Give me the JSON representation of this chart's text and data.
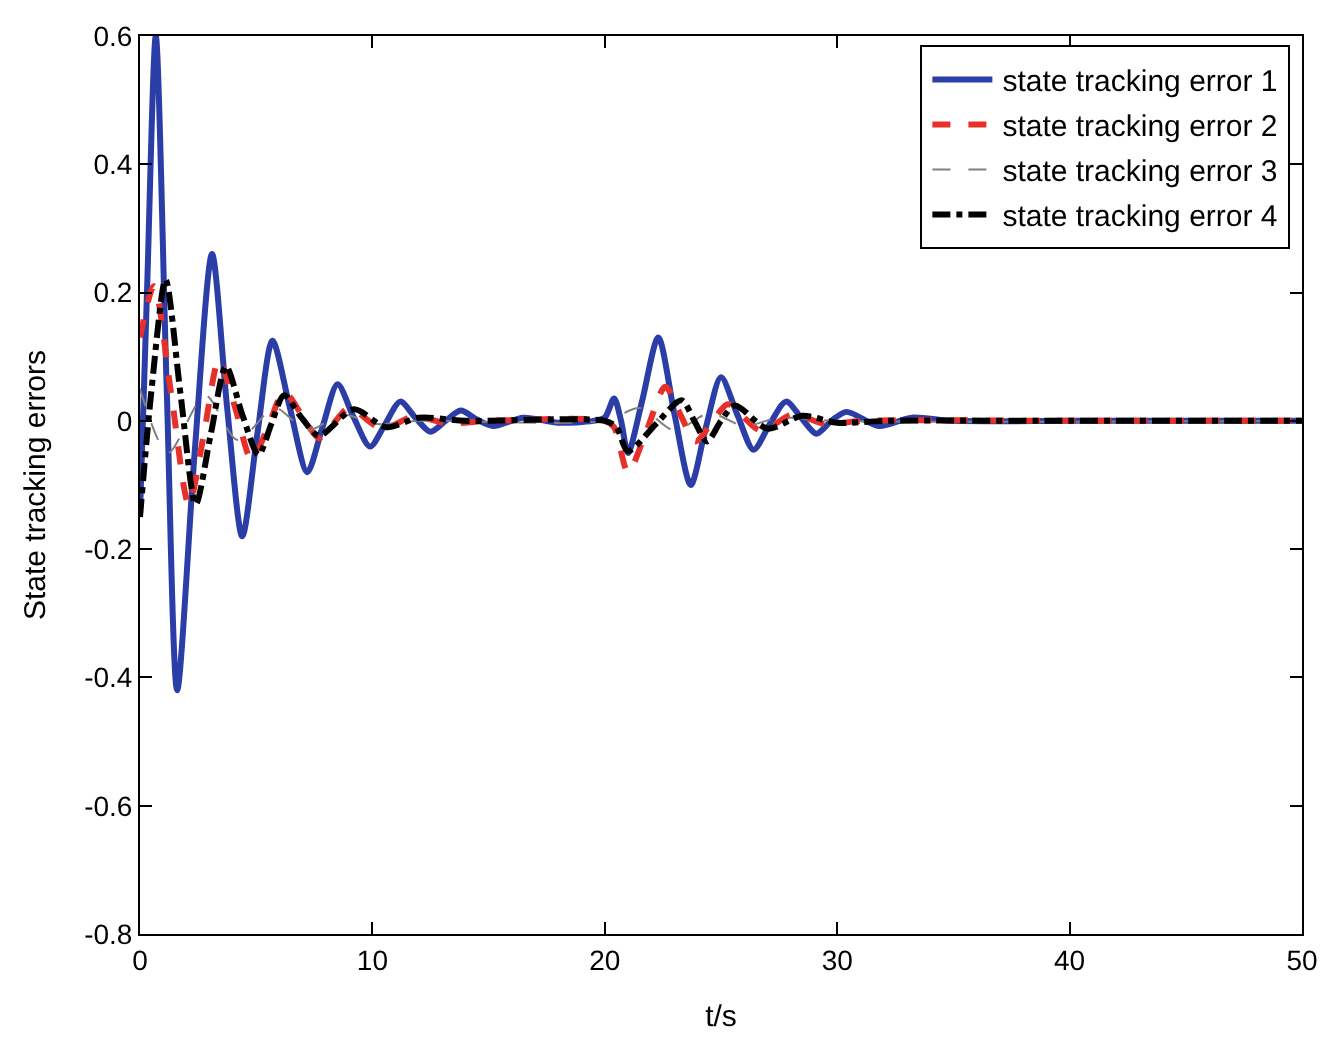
{
  "chart_data": {
    "type": "line",
    "xlabel": "t/s",
    "ylabel": "State tracking errors",
    "xlim": [
      0,
      50
    ],
    "xticks": [
      0,
      10,
      20,
      30,
      40,
      50
    ],
    "ylim": [
      -0.8,
      0.6
    ],
    "yticks": [
      -0.8,
      -0.6,
      -0.4,
      -0.2,
      0,
      0.2,
      0.4,
      0.6
    ],
    "legend": "top right",
    "series": [
      {
        "name": "state tracking error 1",
        "color": "#2b3ea8",
        "line_style": "solid",
        "x": [
          0,
          0.3,
          0.68,
          1.15,
          1.6,
          2.35,
          3.1,
          3.75,
          4.4,
          5.05,
          5.7,
          6.45,
          7.2,
          7.85,
          8.5,
          9.2,
          9.9,
          10.55,
          11.2,
          11.85,
          12.5,
          13.15,
          13.8,
          14.5,
          15.2,
          16.5,
          18,
          19.5,
          20,
          20.4,
          20.7,
          21.0,
          21.6,
          22.3,
          23.0,
          23.7,
          24.35,
          25.0,
          25.7,
          26.4,
          27.1,
          27.8,
          28.45,
          29.1,
          29.75,
          30.4,
          31.8,
          33.2,
          35,
          40,
          45,
          50
        ],
        "values": [
          -0.145,
          0.2,
          0.6,
          0.05,
          -0.42,
          -0.05,
          0.26,
          0.02,
          -0.18,
          -0.02,
          0.125,
          0.02,
          -0.08,
          -0.01,
          0.057,
          0.005,
          -0.04,
          -0.005,
          0.03,
          0.005,
          -0.017,
          0,
          0.016,
          0.002,
          -0.008,
          0.005,
          -0.003,
          0,
          0.005,
          0.035,
          0,
          -0.05,
          0.03,
          0.13,
          0.01,
          -0.1,
          -0.01,
          0.068,
          0.01,
          -0.045,
          -0.005,
          0.03,
          0.005,
          -0.02,
          0,
          0.014,
          -0.008,
          0.005,
          0,
          0,
          0,
          0
        ]
      },
      {
        "name": "state tracking error 2",
        "color": "#e8302a",
        "line_style": "dashed",
        "x": [
          0,
          0.6,
          1.35,
          2.1,
          2.75,
          3.4,
          4.1,
          4.8,
          5.5,
          6.2,
          6.95,
          7.7,
          8.35,
          9.0,
          10.4,
          11.8,
          13.2,
          15,
          20,
          20.4,
          21.0,
          21.8,
          22.6,
          23.25,
          23.9,
          24.6,
          25.3,
          26.7,
          28.1,
          29.5,
          31,
          40,
          50
        ],
        "values": [
          0.13,
          0.21,
          0.04,
          -0.13,
          -0.02,
          0.095,
          0.02,
          -0.06,
          -0.01,
          0.045,
          0.01,
          -0.027,
          -0.003,
          0.02,
          -0.012,
          0.007,
          -0.004,
          0,
          0,
          -0.01,
          -0.08,
          -0.015,
          0.053,
          0.01,
          -0.032,
          -0.003,
          0.026,
          -0.015,
          0.01,
          -0.005,
          0,
          0,
          0
        ]
      },
      {
        "name": "state tracking error 3",
        "color": "#808080",
        "line_style": "dashed",
        "x": [
          0,
          1.2,
          2.8,
          4.2,
          5.8,
          7.2,
          8.7,
          10.2,
          12,
          20,
          21.5,
          23,
          24.5,
          26,
          27.5,
          30,
          50
        ],
        "values": [
          0.05,
          -0.05,
          0.04,
          -0.03,
          0.02,
          -0.015,
          0.01,
          -0.005,
          0,
          0,
          0.02,
          -0.015,
          0.012,
          -0.008,
          0.005,
          0,
          0
        ]
      },
      {
        "name": "state tracking error 4",
        "color": "#000000",
        "line_style": "dashed",
        "x": [
          0,
          0.5,
          1.1,
          1.75,
          2.4,
          3.05,
          3.7,
          4.4,
          5.1,
          5.65,
          6.2,
          6.95,
          7.7,
          9.2,
          10.6,
          12,
          14,
          20,
          20.5,
          21,
          22.2,
          23.3,
          23.85,
          24.4,
          25.0,
          25.6,
          27,
          28.5,
          30,
          32,
          40,
          50
        ],
        "values": [
          -0.15,
          0.05,
          0.22,
          0.04,
          -0.13,
          -0.02,
          0.085,
          0.01,
          -0.053,
          -0.005,
          0.04,
          0.005,
          -0.023,
          0.018,
          -0.01,
          0.005,
          0,
          0,
          -0.01,
          -0.047,
          -0.005,
          0.032,
          0,
          -0.032,
          0,
          0.024,
          -0.012,
          0.008,
          -0.003,
          0,
          0,
          0
        ]
      }
    ]
  }
}
